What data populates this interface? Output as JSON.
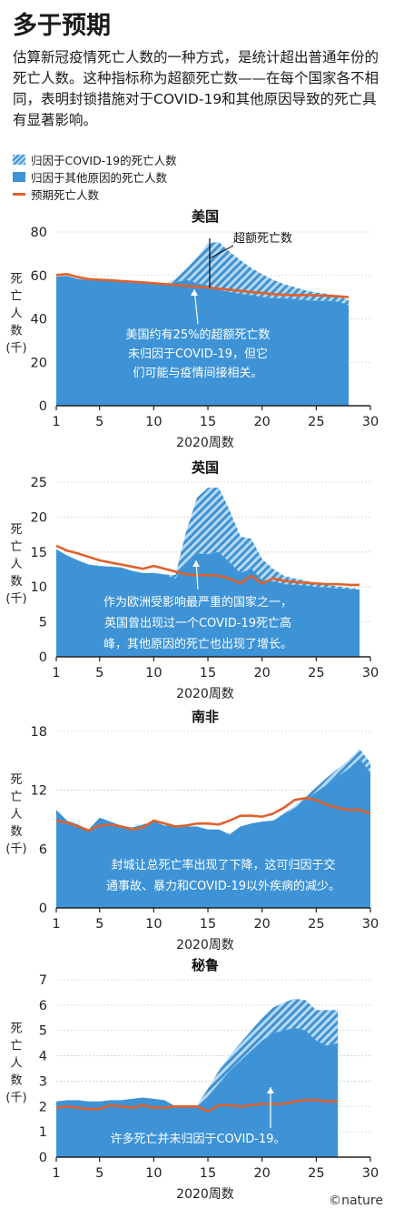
{
  "title": "多于预期",
  "intro": "估算新冠疫情死亡人数的一种方式，是统计超出普通年份的死亡人数。这种指标称为超额死亡数——在每个国家各不相同，表明封锁措施对于COVID-19和其他原因导致的死亡具有显著影响。",
  "legend": {
    "covid": "归因于COVID-19的死亡人数",
    "other": "归因于其他原因的死亡人数",
    "expected": "预期死亡人数"
  },
  "colors": {
    "other": "#3d93d6",
    "covid_hatch": "#b9d9f2",
    "expected": "#e0612c",
    "axis": "#222222"
  },
  "footer": "©nature",
  "chart_data": [
    {
      "type": "area",
      "title": "美国",
      "xlabel": "2020周数",
      "ylabel": "死亡人数(千)",
      "xlim": [
        1,
        30
      ],
      "ylim": [
        0,
        80
      ],
      "xticks": [
        1,
        5,
        10,
        15,
        20,
        25,
        30
      ],
      "yticks": [
        0,
        20,
        40,
        60,
        80
      ],
      "weeks": [
        1,
        2,
        3,
        4,
        5,
        6,
        7,
        8,
        9,
        10,
        11,
        12,
        13,
        14,
        15,
        16,
        17,
        18,
        19,
        20,
        21,
        22,
        23,
        24,
        25,
        26,
        27,
        28
      ],
      "series": [
        {
          "name": "归因于其他原因的死亡人数",
          "values": [
            59.5,
            59.8,
            58.4,
            57.8,
            57.6,
            57.4,
            57.0,
            56.8,
            56.5,
            56.3,
            55.6,
            56.8,
            58.0,
            56.4,
            55.4,
            53.4,
            52.4,
            51.5,
            50.9,
            50.1,
            49.5,
            49.5,
            49.1,
            48.6,
            48.3,
            48.3,
            48.0,
            46.3
          ]
        },
        {
          "name": "归因于COVID-19的死亡人数",
          "values": [
            0,
            0,
            0,
            0,
            0,
            0,
            0,
            0,
            0,
            0,
            0.2,
            1.5,
            5.0,
            12.0,
            19.5,
            22.0,
            18.5,
            15.5,
            12.5,
            10.5,
            8.5,
            6.5,
            5.5,
            4.5,
            3.8,
            3.2,
            2.8,
            2.2
          ]
        },
        {
          "name": "预期死亡人数",
          "values": [
            60.2,
            60.6,
            59.2,
            58.3,
            58.0,
            57.8,
            57.4,
            57.1,
            56.8,
            56.4,
            56.0,
            55.6,
            55.2,
            54.8,
            54.4,
            53.9,
            53.4,
            52.9,
            52.4,
            51.9,
            51.4,
            51.1,
            50.9,
            51.0,
            50.8,
            50.6,
            50.4,
            50.0
          ]
        }
      ],
      "annotations": [
        {
          "text": "超额死亡数"
        },
        {
          "text": "美国约有25%的超额死亡数\n未归因于COVID-19，但它\n们可能与疫情间接相关。"
        }
      ]
    },
    {
      "type": "area",
      "title": "英国",
      "xlabel": "2020周数",
      "ylabel": "死亡人数(千)",
      "xlim": [
        1,
        30
      ],
      "ylim": [
        0,
        25
      ],
      "xticks": [
        1,
        5,
        10,
        15,
        20,
        25,
        30
      ],
      "yticks": [
        0,
        5,
        10,
        15,
        20,
        25
      ],
      "weeks": [
        1,
        2,
        3,
        4,
        5,
        6,
        7,
        8,
        9,
        10,
        11,
        12,
        13,
        14,
        15,
        16,
        17,
        18,
        19,
        20,
        21,
        22,
        23,
        24,
        25,
        26,
        27,
        28,
        29
      ],
      "series": [
        {
          "name": "归因于其他原因的死亡人数",
          "values": [
            15.4,
            14.5,
            13.8,
            13.2,
            13.0,
            12.9,
            12.8,
            12.3,
            12.0,
            12.0,
            11.8,
            11.2,
            13.5,
            14.8,
            14.7,
            15.0,
            13.5,
            12.0,
            12.6,
            11.0,
            10.8,
            10.4,
            10.3,
            10.2,
            10.0,
            9.9,
            9.8,
            9.7,
            9.6
          ]
        },
        {
          "name": "归因于COVID-19的死亡人数",
          "values": [
            0,
            0,
            0,
            0,
            0,
            0,
            0,
            0,
            0,
            0,
            0,
            0.5,
            4.5,
            8.0,
            9.5,
            9.2,
            7.5,
            5.2,
            4.3,
            3.0,
            1.8,
            1.2,
            0.9,
            0.7,
            0.5,
            0.4,
            0.3,
            0.2,
            0.1
          ]
        },
        {
          "name": "预期死亡人数",
          "values": [
            15.9,
            15.2,
            14.8,
            14.3,
            13.8,
            13.5,
            13.2,
            12.9,
            12.6,
            13.0,
            12.6,
            12.2,
            11.8,
            11.7,
            11.7,
            11.6,
            11.2,
            10.5,
            11.6,
            10.5,
            11.2,
            10.9,
            10.7,
            10.6,
            10.5,
            10.4,
            10.4,
            10.3,
            10.3
          ]
        }
      ],
      "annotations": [
        {
          "text": "作为欧洲受影响最严重的国家之一，\n英国曾出现过一个COVID-19死亡高\n峰，其他原因的死亡也出现了增长。"
        }
      ]
    },
    {
      "type": "area",
      "title": "南非",
      "xlabel": "2020周数",
      "ylabel": "死亡人数(千)",
      "xlim": [
        1,
        30
      ],
      "ylim": [
        0,
        18
      ],
      "xticks": [
        1,
        5,
        10,
        15,
        20,
        25,
        30
      ],
      "yticks": [
        0,
        6,
        12,
        18
      ],
      "weeks": [
        1,
        2,
        3,
        4,
        5,
        6,
        7,
        8,
        9,
        10,
        11,
        12,
        13,
        14,
        15,
        16,
        17,
        18,
        19,
        20,
        21,
        22,
        23,
        24,
        25,
        26,
        27,
        28,
        29,
        30
      ],
      "series": [
        {
          "name": "归因于其他原因的死亡人数",
          "values": [
            10.0,
            8.9,
            8.5,
            8.0,
            9.2,
            8.8,
            8.4,
            8.2,
            8.5,
            8.8,
            8.4,
            8.4,
            8.3,
            8.3,
            8.0,
            8.0,
            7.5,
            8.3,
            8.6,
            8.8,
            8.9,
            9.5,
            10.2,
            11.0,
            11.8,
            12.6,
            13.4,
            14.2,
            15.2,
            13.8
          ]
        },
        {
          "name": "归因于COVID-19的死亡人数",
          "values": [
            0,
            0,
            0,
            0,
            0,
            0,
            0,
            0,
            0,
            0,
            0,
            0,
            0,
            0,
            0,
            0,
            0,
            0,
            0,
            0,
            0,
            0.1,
            0.2,
            0.3,
            0.5,
            0.7,
            0.8,
            0.9,
            1.0,
            1.0
          ]
        },
        {
          "name": "预期死亡人数",
          "values": [
            8.9,
            8.7,
            8.3,
            7.9,
            8.4,
            8.5,
            8.3,
            8.0,
            8.2,
            8.9,
            8.6,
            8.3,
            8.4,
            8.6,
            8.6,
            8.5,
            8.9,
            9.4,
            9.4,
            9.3,
            9.6,
            10.2,
            11.0,
            11.2,
            11.0,
            10.5,
            10.2,
            10.0,
            10.0,
            9.6
          ]
        }
      ],
      "annotations": [
        {
          "text": "封城让总死亡率出现了下降，这可归因于交\n通事故、暴力和COVID-19以外疾病的减少。"
        }
      ]
    },
    {
      "type": "area",
      "title": "秘鲁",
      "xlabel": "2020周数",
      "ylabel": "死亡人数(千)",
      "xlim": [
        1,
        30
      ],
      "ylim": [
        0,
        7
      ],
      "xticks": [
        1,
        5,
        10,
        15,
        20,
        25,
        30
      ],
      "yticks": [
        0,
        1,
        2,
        3,
        4,
        5,
        6,
        7
      ],
      "weeks": [
        1,
        2,
        3,
        4,
        5,
        6,
        7,
        8,
        9,
        10,
        11,
        12,
        13,
        14,
        15,
        16,
        17,
        18,
        19,
        20,
        21,
        22,
        23,
        24,
        25,
        26,
        27
      ],
      "series": [
        {
          "name": "归因于其他原因的死亡人数",
          "values": [
            2.2,
            2.25,
            2.25,
            2.2,
            2.2,
            2.25,
            2.25,
            2.3,
            2.35,
            2.3,
            2.25,
            2.0,
            1.95,
            2.0,
            2.4,
            2.9,
            3.4,
            3.8,
            4.2,
            4.6,
            4.9,
            5.0,
            5.1,
            5.0,
            4.6,
            4.4,
            4.5
          ]
        },
        {
          "name": "归因于COVID-19的死亡人数",
          "values": [
            0,
            0,
            0,
            0,
            0,
            0,
            0,
            0,
            0,
            0,
            0,
            0,
            0,
            0.05,
            0.3,
            0.5,
            0.6,
            0.7,
            0.8,
            0.9,
            1.0,
            1.1,
            1.15,
            1.2,
            1.2,
            1.4,
            1.3
          ]
        },
        {
          "name": "预期死亡人数",
          "values": [
            1.95,
            2.0,
            1.95,
            1.9,
            1.9,
            2.05,
            2.0,
            1.95,
            2.05,
            1.95,
            1.95,
            2.0,
            2.0,
            2.0,
            1.8,
            2.05,
            2.05,
            2.0,
            2.05,
            2.1,
            2.1,
            2.1,
            2.2,
            2.25,
            2.25,
            2.2,
            2.2
          ]
        }
      ],
      "annotations": [
        {
          "text": "许多死亡并未归因于COVID-19。"
        }
      ]
    }
  ]
}
